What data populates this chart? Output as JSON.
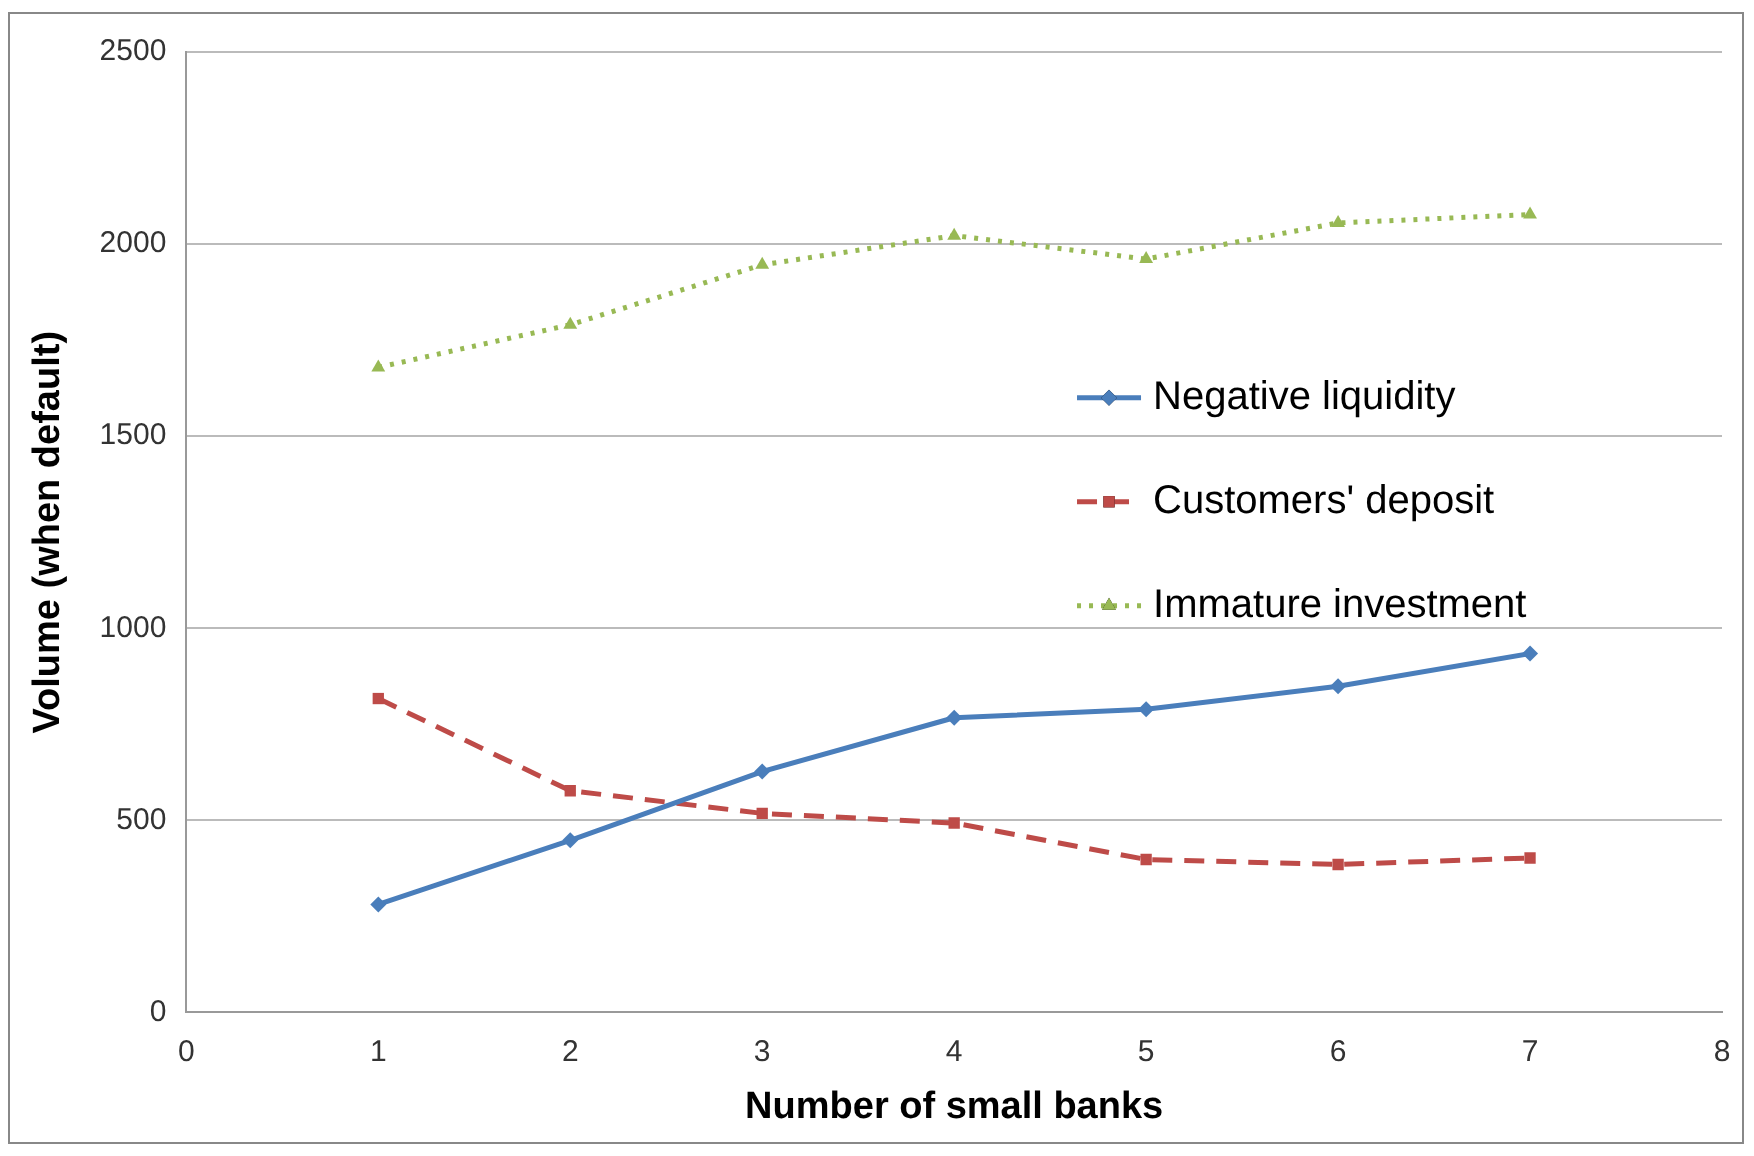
{
  "chart_data": {
    "type": "line",
    "xlabel": "Number of small banks",
    "ylabel": "Volume (when default)",
    "x": [
      1,
      2,
      3,
      4,
      5,
      6,
      7
    ],
    "xlim": [
      0,
      8
    ],
    "xticks": [
      0,
      1,
      2,
      3,
      4,
      5,
      6,
      7,
      8
    ],
    "ylim": [
      0,
      2500
    ],
    "yticks": [
      0,
      500,
      1000,
      1500,
      2000,
      2500
    ],
    "grid": "y",
    "legend": "right",
    "series": [
      {
        "name": "Negative liquidity",
        "color": "#4a7ebb",
        "marker": "diamond",
        "line_style": "solid",
        "values": [
          281,
          448,
          627,
          767,
          789,
          849,
          934
        ]
      },
      {
        "name": "Customers' deposit",
        "color": "#be4b48",
        "marker": "square",
        "line_style": "dashed",
        "values": [
          817,
          577,
          518,
          493,
          398,
          385,
          402
        ]
      },
      {
        "name": "Immature investment",
        "color": "#98b954",
        "marker": "triangle",
        "line_style": "dotted",
        "values": [
          1679,
          1790,
          1946,
          2022,
          1961,
          2055,
          2077
        ]
      }
    ]
  }
}
